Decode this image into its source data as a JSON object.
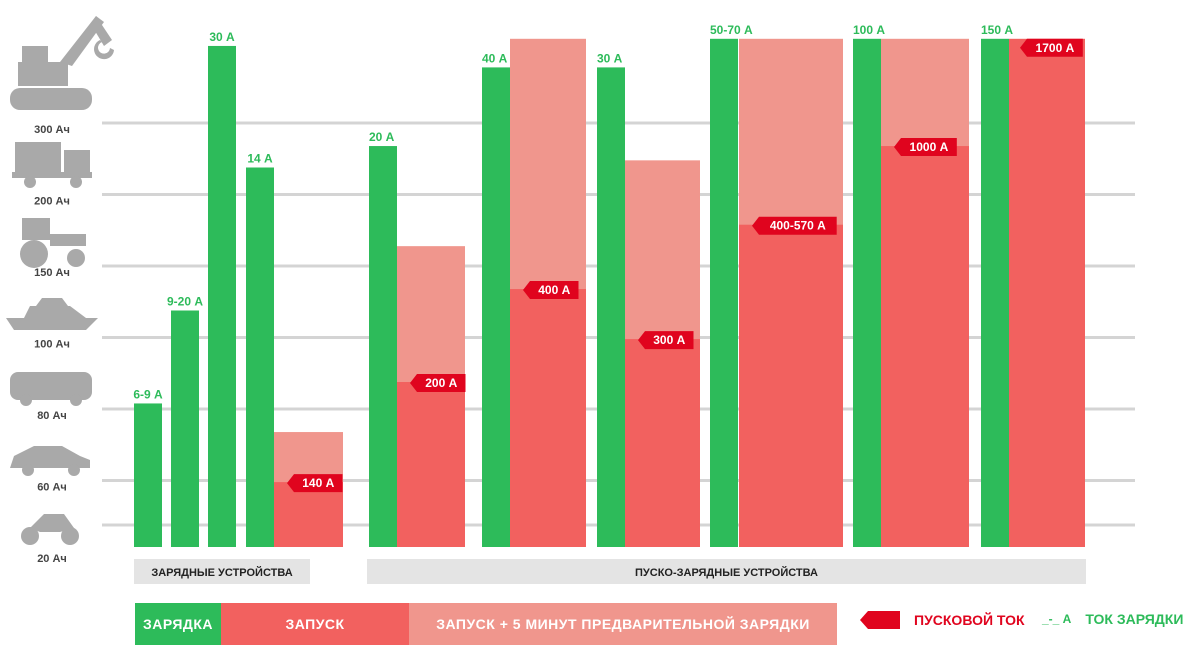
{
  "colors": {
    "charge": "#2dbb5a",
    "start": "#f2615f",
    "start_plus": "#f0968d",
    "peak": "#e0041e",
    "grid": "#d4d4d4",
    "section_bg": "#e4e4e4",
    "icon": "#a9a9a9"
  },
  "chart_data": {
    "type": "bar",
    "categories": [
      "20 Ач",
      "60 Ач",
      "80 Ач",
      "100 Ач",
      "150 Ач",
      "200 Ач",
      "300 Ач"
    ],
    "category_icons": [
      "motorcycle-icon",
      "car-icon",
      "van-icon",
      "boat-icon",
      "tractor-icon",
      "truck-icon",
      "excavator-icon"
    ],
    "sections": [
      "ЗАРЯДНЫЕ УСТРОЙСТВА",
      "ПУСКО-ЗАРЯДНЫЕ УСТРОЙСТВА"
    ],
    "devices": [
      {
        "group": 0,
        "current_label": "6-9 А",
        "charge_level": 1.7
      },
      {
        "group": 0,
        "current_label": "9-20 А",
        "charge_level": 3.0
      },
      {
        "group": 0,
        "current_label": "30 А",
        "charge_level": 6.7
      },
      {
        "group": 0,
        "current_label": "14 А",
        "charge_level": 5.0,
        "start_level": 0.6,
        "start_plus_level": 1.3,
        "peak_label": "140 А"
      },
      {
        "group": 1,
        "current_label": "20 А",
        "charge_level": 5.3,
        "start_level": 2.0,
        "start_plus_level": 3.9,
        "peak_label": "200 А"
      },
      {
        "group": 1,
        "current_label": "40 А",
        "charge_level": 6.4,
        "start_level": 3.3,
        "start_plus_level": 6.8,
        "peak_label": "400 А"
      },
      {
        "group": 1,
        "current_label": "30 А",
        "charge_level": 6.4,
        "start_level": 2.6,
        "start_plus_level": 5.1,
        "peak_label": "300 А"
      },
      {
        "group": 1,
        "current_label": "50-70 А",
        "charge_level": 6.8,
        "start_level": 4.2,
        "start_plus_level": 6.8,
        "peak_label": "400-570 А"
      },
      {
        "group": 1,
        "current_label": "100 А",
        "charge_level": 6.8,
        "start_level": 5.3,
        "start_plus_level": 6.8,
        "peak_label": "1000 А"
      },
      {
        "group": 1,
        "current_label": "150 А",
        "charge_level": 6.8,
        "start_level": 6.8,
        "peak_label": "1700 А"
      }
    ],
    "legend": [
      {
        "key": "charge",
        "label": "ЗАРЯДКА"
      },
      {
        "key": "start",
        "label": "ЗАПУСК"
      },
      {
        "key": "start_plus",
        "label": "ЗАПУСК + 5 МИНУТ ПРЕДВАРИТЕЛЬНОЙ ЗАРЯДКИ"
      }
    ],
    "legend_peak_label": "ПУСКОВОЙ ТОК",
    "legend_current_sample": "_-_ А",
    "legend_current_label": "ТОК ЗАРЯДКИ",
    "grid": true
  }
}
